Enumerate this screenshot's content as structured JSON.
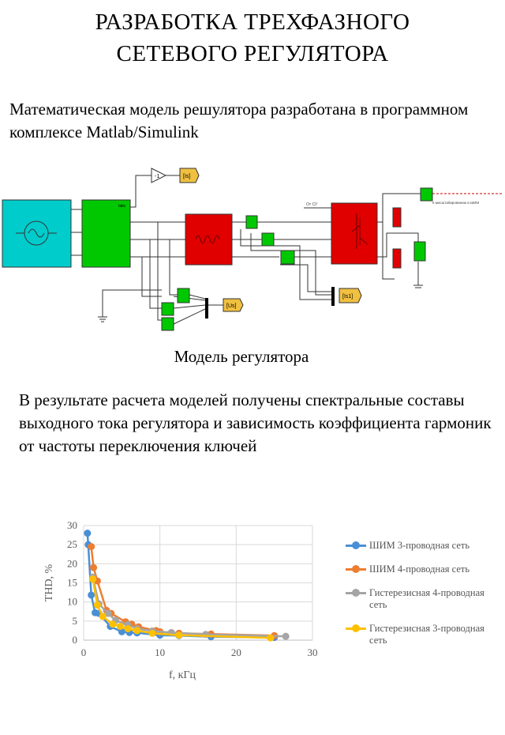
{
  "title": {
    "line1": "РАЗРАБОТКА ТРЕХФАЗНОГО",
    "line2": "СЕТЕВОГО РЕГУЛЯТОРА"
  },
  "intro": "Математическая модель решулятора разработана в программном комплексе Matlab/Simulink",
  "diagram": {
    "caption": "Модель регулятора",
    "labels": {
      "gain": "-1",
      "tag_is": "[Is]",
      "tag_us": "[Us]",
      "tag_is1": "[Is1]",
      "from_su": "От СУ",
      "to_pwm": "К масштабированию в ШИМ",
      "iabc": "Iabc",
      "port_a": "A",
      "port_b": "B",
      "port_c": "C"
    },
    "colors": {
      "source": "#00CCCC",
      "measure": "#00C800",
      "filter": "#E00000",
      "small": "#00C800"
    }
  },
  "result": "В результате расчета моделей получены спектральные составы выходного тока регулятора и зависимость коэффициента гармоник от частоты переключения ключей",
  "chart_data": {
    "type": "line",
    "title": "",
    "xlabel": "f, кГц",
    "ylabel": "THD, %",
    "xlim": [
      0,
      30
    ],
    "ylim": [
      0,
      30
    ],
    "xticks": [
      0,
      10,
      20,
      30
    ],
    "yticks": [
      0,
      5,
      10,
      15,
      20,
      25,
      30
    ],
    "grid": true,
    "legend_position": "right",
    "series": [
      {
        "name": "ШИМ 3-проводная сеть",
        "color": "#4A8FD6",
        "x": [
          0.5,
          0.6,
          1.0,
          1.5,
          2.0,
          3.5,
          5.0,
          6.0,
          7.0,
          10.0,
          12.5,
          16.7,
          25.0
        ],
        "y": [
          28,
          25,
          11.8,
          7.2,
          7.0,
          3.6,
          2.2,
          2.0,
          1.9,
          1.3,
          1.2,
          0.9,
          0.7
        ]
      },
      {
        "name": "ШИМ 4-проводная сеть",
        "color": "#ED7D31",
        "x": [
          1.0,
          1.3,
          1.8,
          3.0,
          3.6,
          5.5,
          6.3,
          7.2,
          9.5,
          10.0,
          12.5,
          16.7,
          25.0
        ],
        "y": [
          24.5,
          19,
          15.5,
          7.8,
          7.0,
          4.8,
          4.2,
          3.5,
          2.5,
          2.2,
          1.8,
          1.6,
          1.2
        ]
      },
      {
        "name": "Гистерезисная 4-проводная сеть",
        "color": "#A5A5A5",
        "x": [
          1.2,
          2.0,
          3.2,
          4.2,
          5.8,
          7.0,
          9.0,
          11.5,
          16.0,
          26.5
        ],
        "y": [
          16.5,
          9.5,
          7.0,
          5.2,
          4.0,
          3.0,
          2.4,
          2.0,
          1.5,
          1.0
        ]
      },
      {
        "name": "Гистерезисная 3-проводная сеть",
        "color": "#FFC000",
        "x": [
          1.2,
          1.8,
          2.5,
          3.8,
          4.8,
          5.8,
          7.0,
          9.0,
          12.5,
          24.5
        ],
        "y": [
          16.0,
          9.2,
          6.2,
          4.2,
          3.6,
          3.0,
          2.5,
          1.8,
          1.3,
          0.6
        ]
      }
    ]
  }
}
